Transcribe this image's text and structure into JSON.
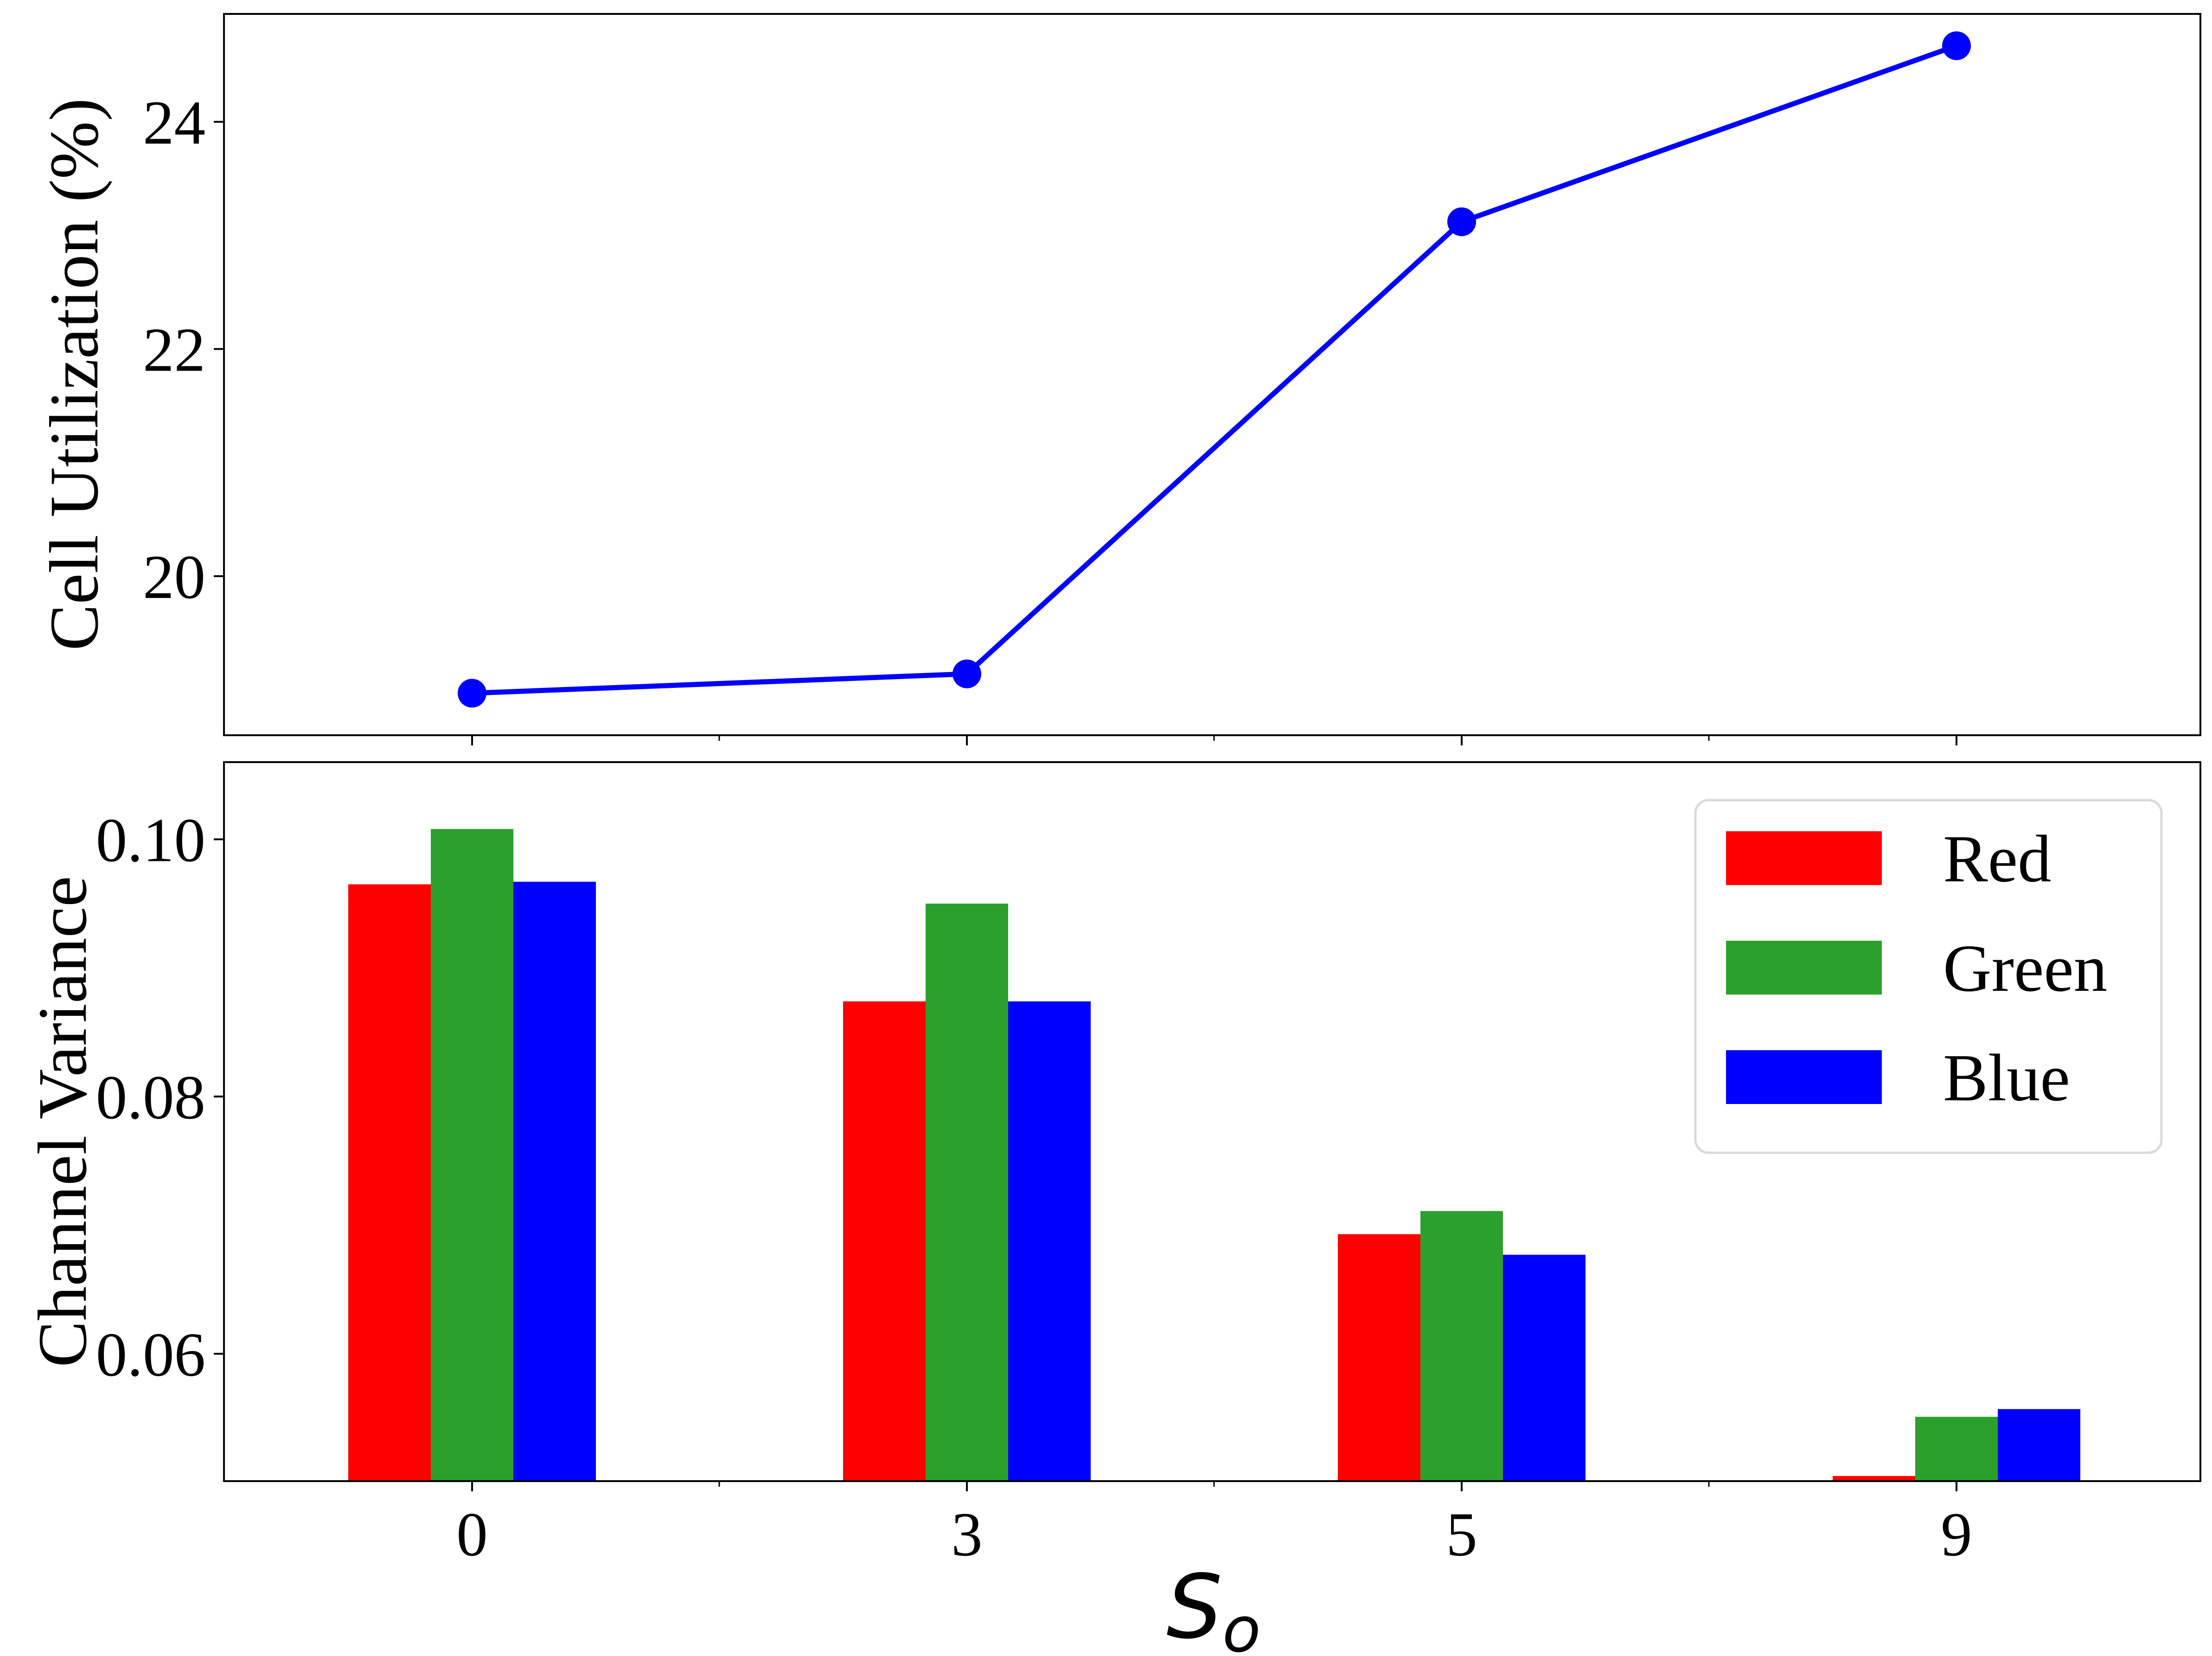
{
  "colors": {
    "line": "#0000ff",
    "red": "#ff0000",
    "green": "#2ca02c",
    "blue": "#0000ff",
    "axes": "#000000",
    "legend_border": "#d9d9d9"
  },
  "chart_data": [
    {
      "type": "line",
      "ylabel": "Cell Utilization (%)",
      "x": [
        "0",
        "3",
        "5",
        "9"
      ],
      "series": [
        {
          "values": [
            18.97,
            19.14,
            23.12,
            24.67
          ]
        }
      ],
      "marker": "circle",
      "ylim": [
        18.6,
        24.95
      ],
      "yticks": [
        "20",
        "22",
        "24"
      ],
      "ytick_values": [
        20,
        22,
        24
      ],
      "grid": false
    },
    {
      "type": "bar",
      "ylabel": "Channel Variance",
      "xlabel_base": "S",
      "xlabel_sub": "o",
      "categories": [
        "0",
        "3",
        "5",
        "9"
      ],
      "series": [
        {
          "name": "Red",
          "color": "#ff0000",
          "values": [
            0.0965,
            0.0874,
            0.0693,
            0.0505
          ]
        },
        {
          "name": "Green",
          "color": "#2ca02c",
          "values": [
            0.1008,
            0.095,
            0.0711,
            0.0551
          ]
        },
        {
          "name": "Blue",
          "color": "#0000ff",
          "values": [
            0.0967,
            0.0874,
            0.0677,
            0.0557
          ]
        }
      ],
      "ylim": [
        0.0501,
        0.106
      ],
      "yticks": [
        "0.06",
        "0.08",
        "0.10"
      ],
      "ytick_values": [
        0.06,
        0.08,
        0.1
      ],
      "legend_position": "top-right",
      "grid": false
    }
  ]
}
